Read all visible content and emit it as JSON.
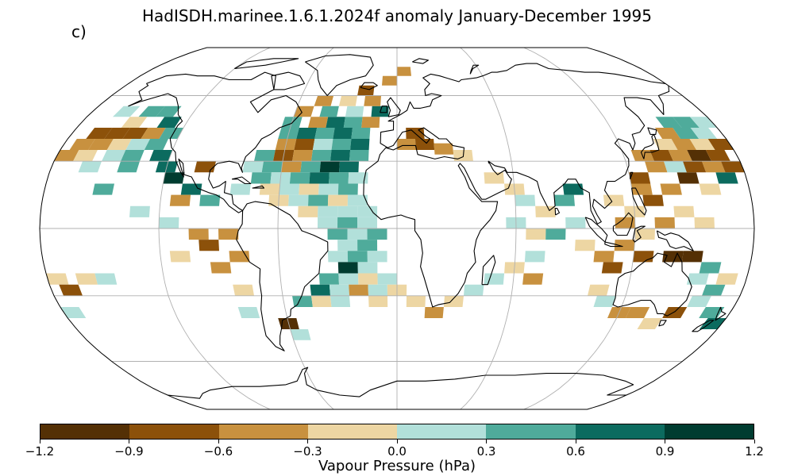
{
  "title": "HadISDH.marinee.1.6.1.2024f anomaly January-December 1995",
  "panel_label": "c)",
  "colorbar": {
    "label": "Vapour Pressure (hPa)",
    "ticks": [
      "−1.2",
      "−0.9",
      "−0.6",
      "−0.3",
      "0.0",
      "0.3",
      "0.6",
      "0.9",
      "1.2"
    ],
    "colors": [
      "#543005",
      "#8c510a",
      "#c8913f",
      "#edd6a3",
      "#b2e0da",
      "#4fab9b",
      "#0c6b5f",
      "#003c30"
    ]
  },
  "map": {
    "projection": "Robinson",
    "gridlines": "on",
    "ocean_anomaly_cells": [
      {
        "lon": -165,
        "lat": 42.5,
        "class": 1
      },
      {
        "lon": -155,
        "lat": 42.5,
        "class": 1
      },
      {
        "lon": -145,
        "lat": 42.5,
        "class": 1
      },
      {
        "lon": -135,
        "lat": 42.5,
        "class": 2
      },
      {
        "lon": -125,
        "lat": 42.5,
        "class": 5
      },
      {
        "lon": -170,
        "lat": 37.5,
        "class": 2
      },
      {
        "lon": -160,
        "lat": 37.5,
        "class": 2
      },
      {
        "lon": -150,
        "lat": 37.5,
        "class": 3
      },
      {
        "lon": -140,
        "lat": 37.5,
        "class": 4
      },
      {
        "lon": -130,
        "lat": 37.5,
        "class": 5
      },
      {
        "lon": -175,
        "lat": 32.5,
        "class": 2
      },
      {
        "lon": -165,
        "lat": 32.5,
        "class": 3
      },
      {
        "lon": -150,
        "lat": 32.5,
        "class": 4
      },
      {
        "lon": -140,
        "lat": 32.5,
        "class": 5
      },
      {
        "lon": -125,
        "lat": 32.5,
        "class": 6
      },
      {
        "lon": -160,
        "lat": 52.5,
        "class": 4
      },
      {
        "lon": -145,
        "lat": 52.5,
        "class": 5
      },
      {
        "lon": -135,
        "lat": 52.5,
        "class": 5
      },
      {
        "lon": -150,
        "lat": 47.5,
        "class": 3
      },
      {
        "lon": -130,
        "lat": 47.5,
        "class": 6
      },
      {
        "lon": -160,
        "lat": 27.5,
        "class": 4
      },
      {
        "lon": -140,
        "lat": 27.5,
        "class": 5
      },
      {
        "lon": -120,
        "lat": 27.5,
        "class": 6
      },
      {
        "lon": -115,
        "lat": 22.5,
        "class": 7
      },
      {
        "lon": -105,
        "lat": 17.5,
        "class": 6
      },
      {
        "lon": -95,
        "lat": 12.5,
        "class": 5
      },
      {
        "lon": -110,
        "lat": 12.5,
        "class": 2
      },
      {
        "lon": -100,
        "lat": 27.5,
        "class": 1
      },
      {
        "lon": -150,
        "lat": 17.5,
        "class": 5
      },
      {
        "lon": -130,
        "lat": 7.5,
        "class": 4
      },
      {
        "lon": -115,
        "lat": 2.5,
        "class": 4
      },
      {
        "lon": -100,
        "lat": -2.5,
        "class": 2
      },
      {
        "lon": -95,
        "lat": -7.5,
        "class": 1
      },
      {
        "lon": -85,
        "lat": -2.5,
        "class": 2
      },
      {
        "lon": -110,
        "lat": -12.5,
        "class": 3
      },
      {
        "lon": -90,
        "lat": -17.5,
        "class": 2
      },
      {
        "lon": -80,
        "lat": -12.5,
        "class": 2
      },
      {
        "lon": -80,
        "lat": -27.5,
        "class": 3
      },
      {
        "lon": -80,
        "lat": -37.5,
        "class": 4
      },
      {
        "lon": -60,
        "lat": -42.5,
        "class": 0
      },
      {
        "lon": -55,
        "lat": -47.5,
        "class": 4
      },
      {
        "lon": -175,
        "lat": -22.5,
        "class": 3
      },
      {
        "lon": -170,
        "lat": -27.5,
        "class": 1
      },
      {
        "lon": -160,
        "lat": -22.5,
        "class": 3
      },
      {
        "lon": -150,
        "lat": -22.5,
        "class": 4
      },
      {
        "lon": -175,
        "lat": -37.5,
        "class": 4
      },
      {
        "lon": -60,
        "lat": 42.5,
        "class": 5
      },
      {
        "lon": -50,
        "lat": 42.5,
        "class": 6
      },
      {
        "lon": -40,
        "lat": 42.5,
        "class": 5
      },
      {
        "lon": -30,
        "lat": 42.5,
        "class": 6
      },
      {
        "lon": -20,
        "lat": 42.5,
        "class": 5
      },
      {
        "lon": -60,
        "lat": 47.5,
        "class": 5
      },
      {
        "lon": -45,
        "lat": 47.5,
        "class": 2
      },
      {
        "lon": -35,
        "lat": 47.5,
        "class": 6
      },
      {
        "lon": -25,
        "lat": 47.5,
        "class": 5
      },
      {
        "lon": -15,
        "lat": 47.5,
        "class": 2
      },
      {
        "lon": -55,
        "lat": 52.5,
        "class": 2
      },
      {
        "lon": -40,
        "lat": 52.5,
        "class": 5
      },
      {
        "lon": -25,
        "lat": 52.5,
        "class": 4
      },
      {
        "lon": -10,
        "lat": 52.5,
        "class": 6
      },
      {
        "lon": -45,
        "lat": 57.5,
        "class": 2
      },
      {
        "lon": -30,
        "lat": 57.5,
        "class": 3
      },
      {
        "lon": -15,
        "lat": 57.5,
        "class": 2
      },
      {
        "lon": -20,
        "lat": 62.5,
        "class": 1
      },
      {
        "lon": -5,
        "lat": 67.5,
        "class": 2
      },
      {
        "lon": 5,
        "lat": 72.5,
        "class": 2
      },
      {
        "lon": -60,
        "lat": 37.5,
        "class": 2
      },
      {
        "lon": -50,
        "lat": 37.5,
        "class": 1
      },
      {
        "lon": -40,
        "lat": 37.5,
        "class": 4
      },
      {
        "lon": -30,
        "lat": 37.5,
        "class": 5
      },
      {
        "lon": -20,
        "lat": 37.5,
        "class": 6
      },
      {
        "lon": -70,
        "lat": 32.5,
        "class": 5
      },
      {
        "lon": -60,
        "lat": 32.5,
        "class": 1
      },
      {
        "lon": -50,
        "lat": 32.5,
        "class": 2
      },
      {
        "lon": -40,
        "lat": 32.5,
        "class": 5
      },
      {
        "lon": -30,
        "lat": 32.5,
        "class": 6
      },
      {
        "lon": -20,
        "lat": 32.5,
        "class": 5
      },
      {
        "lon": -75,
        "lat": 27.5,
        "class": 4
      },
      {
        "lon": -65,
        "lat": 27.5,
        "class": 5
      },
      {
        "lon": -55,
        "lat": 27.5,
        "class": 2
      },
      {
        "lon": -45,
        "lat": 27.5,
        "class": 5
      },
      {
        "lon": -35,
        "lat": 27.5,
        "class": 7
      },
      {
        "lon": -25,
        "lat": 27.5,
        "class": 6
      },
      {
        "lon": -70,
        "lat": 22.5,
        "class": 5
      },
      {
        "lon": -60,
        "lat": 22.5,
        "class": 4
      },
      {
        "lon": -50,
        "lat": 22.5,
        "class": 5
      },
      {
        "lon": -40,
        "lat": 22.5,
        "class": 6
      },
      {
        "lon": -30,
        "lat": 22.5,
        "class": 5
      },
      {
        "lon": -20,
        "lat": 22.5,
        "class": 4
      },
      {
        "lon": -80,
        "lat": 17.5,
        "class": 4
      },
      {
        "lon": -65,
        "lat": 17.5,
        "class": 3
      },
      {
        "lon": -55,
        "lat": 17.5,
        "class": 4
      },
      {
        "lon": -45,
        "lat": 17.5,
        "class": 3
      },
      {
        "lon": -35,
        "lat": 17.5,
        "class": 4
      },
      {
        "lon": -25,
        "lat": 17.5,
        "class": 5
      },
      {
        "lon": -60,
        "lat": 12.5,
        "class": 3
      },
      {
        "lon": -50,
        "lat": 12.5,
        "class": 4
      },
      {
        "lon": -40,
        "lat": 12.5,
        "class": 5
      },
      {
        "lon": -30,
        "lat": 12.5,
        "class": 3
      },
      {
        "lon": -20,
        "lat": 12.5,
        "class": 4
      },
      {
        "lon": -45,
        "lat": 7.5,
        "class": 3
      },
      {
        "lon": -35,
        "lat": 7.5,
        "class": 4
      },
      {
        "lon": -25,
        "lat": 7.5,
        "class": 4
      },
      {
        "lon": -15,
        "lat": 7.5,
        "class": 4
      },
      {
        "lon": -35,
        "lat": 2.5,
        "class": 4
      },
      {
        "lon": -25,
        "lat": 2.5,
        "class": 5
      },
      {
        "lon": -15,
        "lat": 2.5,
        "class": 4
      },
      {
        "lon": -30,
        "lat": -2.5,
        "class": 5
      },
      {
        "lon": -20,
        "lat": -2.5,
        "class": 4
      },
      {
        "lon": -10,
        "lat": -2.5,
        "class": 5
      },
      {
        "lon": -25,
        "lat": -7.5,
        "class": 4
      },
      {
        "lon": -15,
        "lat": -7.5,
        "class": 5
      },
      {
        "lon": -30,
        "lat": -12.5,
        "class": 4
      },
      {
        "lon": -20,
        "lat": -12.5,
        "class": 5
      },
      {
        "lon": -10,
        "lat": -12.5,
        "class": 4
      },
      {
        "lon": -25,
        "lat": -17.5,
        "class": 7
      },
      {
        "lon": -15,
        "lat": -17.5,
        "class": 4
      },
      {
        "lon": -35,
        "lat": -22.5,
        "class": 5
      },
      {
        "lon": -25,
        "lat": -22.5,
        "class": 4
      },
      {
        "lon": -15,
        "lat": -22.5,
        "class": 3
      },
      {
        "lon": -5,
        "lat": -22.5,
        "class": 4
      },
      {
        "lon": -40,
        "lat": -27.5,
        "class": 6
      },
      {
        "lon": -30,
        "lat": -27.5,
        "class": 4
      },
      {
        "lon": -20,
        "lat": -27.5,
        "class": 2
      },
      {
        "lon": -10,
        "lat": -27.5,
        "class": 4
      },
      {
        "lon": 0,
        "lat": -27.5,
        "class": 3
      },
      {
        "lon": -50,
        "lat": -32.5,
        "class": 5
      },
      {
        "lon": -40,
        "lat": -32.5,
        "class": 3
      },
      {
        "lon": -30,
        "lat": -32.5,
        "class": 4
      },
      {
        "lon": -10,
        "lat": -32.5,
        "class": 3
      },
      {
        "lon": 10,
        "lat": -32.5,
        "class": 3
      },
      {
        "lon": 20,
        "lat": -37.5,
        "class": 2
      },
      {
        "lon": 30,
        "lat": -32.5,
        "class": 3
      },
      {
        "lon": 40,
        "lat": -27.5,
        "class": 4
      },
      {
        "lon": 50,
        "lat": -22.5,
        "class": 4
      },
      {
        "lon": 60,
        "lat": -17.5,
        "class": 3
      },
      {
        "lon": 70,
        "lat": -12.5,
        "class": 4
      },
      {
        "lon": 70,
        "lat": -22.5,
        "class": 2
      },
      {
        "lon": 5,
        "lat": 37.5,
        "class": 2
      },
      {
        "lon": 15,
        "lat": 37.5,
        "class": 1
      },
      {
        "lon": 25,
        "lat": 35.5,
        "class": 2
      },
      {
        "lon": 35,
        "lat": 32.5,
        "class": 3
      },
      {
        "lon": 10,
        "lat": 42.5,
        "class": 1
      },
      {
        "lon": 50,
        "lat": 22.5,
        "class": 3
      },
      {
        "lon": 60,
        "lat": 17.5,
        "class": 3
      },
      {
        "lon": 65,
        "lat": 12.5,
        "class": 4
      },
      {
        "lon": 75,
        "lat": 7.5,
        "class": 3
      },
      {
        "lon": 85,
        "lat": 12.5,
        "class": 5
      },
      {
        "lon": 90,
        "lat": 17.5,
        "class": 6
      },
      {
        "lon": 60,
        "lat": 2.5,
        "class": 4
      },
      {
        "lon": 70,
        "lat": -2.5,
        "class": 3
      },
      {
        "lon": 80,
        "lat": -2.5,
        "class": 5
      },
      {
        "lon": 90,
        "lat": 2.5,
        "class": 4
      },
      {
        "lon": 95,
        "lat": -7.5,
        "class": 3
      },
      {
        "lon": 105,
        "lat": -12.5,
        "class": 2
      },
      {
        "lon": 110,
        "lat": -17.5,
        "class": 1
      },
      {
        "lon": 105,
        "lat": -27.5,
        "class": 3
      },
      {
        "lon": 110,
        "lat": -32.5,
        "class": 4
      },
      {
        "lon": 120,
        "lat": -37.5,
        "class": 2
      },
      {
        "lon": 130,
        "lat": -37.5,
        "class": 2
      },
      {
        "lon": 140,
        "lat": -42.5,
        "class": 3
      },
      {
        "lon": 150,
        "lat": -37.5,
        "class": 1
      },
      {
        "lon": 160,
        "lat": -32.5,
        "class": 4
      },
      {
        "lon": 170,
        "lat": -37.5,
        "class": 5
      },
      {
        "lon": 175,
        "lat": -42.5,
        "class": 6
      },
      {
        "lon": 165,
        "lat": -27.5,
        "class": 5
      },
      {
        "lon": 155,
        "lat": -22.5,
        "class": 4
      },
      {
        "lon": 160,
        "lat": -17.5,
        "class": 5
      },
      {
        "lon": 170,
        "lat": -22.5,
        "class": 3
      },
      {
        "lon": 150,
        "lat": -12.5,
        "class": 0
      },
      {
        "lon": 140,
        "lat": -12.5,
        "class": 0
      },
      {
        "lon": 125,
        "lat": -12.5,
        "class": 1
      },
      {
        "lon": 115,
        "lat": -7.5,
        "class": 2
      },
      {
        "lon": 125,
        "lat": -2.5,
        "class": 3
      },
      {
        "lon": 135,
        "lat": 2.5,
        "class": 2
      },
      {
        "lon": 145,
        "lat": 7.5,
        "class": 3
      },
      {
        "lon": 155,
        "lat": 2.5,
        "class": 3
      },
      {
        "lon": 130,
        "lat": 12.5,
        "class": 1
      },
      {
        "lon": 140,
        "lat": 17.5,
        "class": 2
      },
      {
        "lon": 150,
        "lat": 22.5,
        "class": 0
      },
      {
        "lon": 160,
        "lat": 17.5,
        "class": 3
      },
      {
        "lon": 170,
        "lat": 22.5,
        "class": 6
      },
      {
        "lon": 125,
        "lat": 22.5,
        "class": 1
      },
      {
        "lon": 135,
        "lat": 27.5,
        "class": 2
      },
      {
        "lon": 145,
        "lat": 27.5,
        "class": 4
      },
      {
        "lon": 155,
        "lat": 27.5,
        "class": 1
      },
      {
        "lon": 165,
        "lat": 27.5,
        "class": 2
      },
      {
        "lon": 175,
        "lat": 27.5,
        "class": 1
      },
      {
        "lon": 140,
        "lat": 32.5,
        "class": 1
      },
      {
        "lon": 150,
        "lat": 32.5,
        "class": 2
      },
      {
        "lon": 160,
        "lat": 32.5,
        "class": 0
      },
      {
        "lon": 170,
        "lat": 32.5,
        "class": 1
      },
      {
        "lon": 145,
        "lat": 37.5,
        "class": 3
      },
      {
        "lon": 155,
        "lat": 37.5,
        "class": 2
      },
      {
        "lon": 165,
        "lat": 37.5,
        "class": 3
      },
      {
        "lon": 175,
        "lat": 37.5,
        "class": 1
      },
      {
        "lon": 150,
        "lat": 42.5,
        "class": 2
      },
      {
        "lon": 160,
        "lat": 42.5,
        "class": 5
      },
      {
        "lon": 170,
        "lat": 42.5,
        "class": 4
      },
      {
        "lon": 155,
        "lat": 47.5,
        "class": 5
      },
      {
        "lon": 165,
        "lat": 47.5,
        "class": 5
      },
      {
        "lon": 175,
        "lat": 47.5,
        "class": 4
      },
      {
        "lon": 130,
        "lat": 32.5,
        "class": 2
      },
      {
        "lon": 125,
        "lat": 17.5,
        "class": 2
      },
      {
        "lon": 120,
        "lat": 7.5,
        "class": 3
      },
      {
        "lon": 110,
        "lat": 12.5,
        "class": 3
      },
      {
        "lon": 115,
        "lat": 2.5,
        "class": 2
      }
    ],
    "colorbar_extents": [
      -1.2,
      1.2
    ]
  }
}
